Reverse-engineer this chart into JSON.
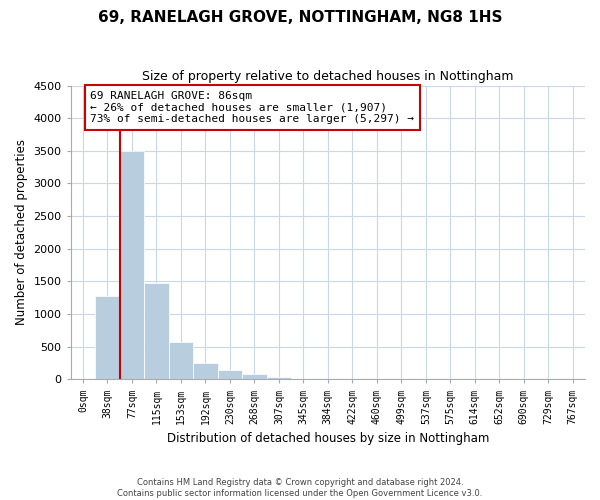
{
  "title": "69, RANELAGH GROVE, NOTTINGHAM, NG8 1HS",
  "subtitle": "Size of property relative to detached houses in Nottingham",
  "xlabel": "Distribution of detached houses by size in Nottingham",
  "ylabel": "Number of detached properties",
  "bar_labels": [
    "0sqm",
    "38sqm",
    "77sqm",
    "115sqm",
    "153sqm",
    "192sqm",
    "230sqm",
    "268sqm",
    "307sqm",
    "345sqm",
    "384sqm",
    "422sqm",
    "460sqm",
    "499sqm",
    "537sqm",
    "575sqm",
    "614sqm",
    "652sqm",
    "690sqm",
    "729sqm",
    "767sqm"
  ],
  "bar_values": [
    0,
    1280,
    3500,
    1480,
    580,
    250,
    140,
    80,
    30,
    5,
    2,
    0,
    1,
    0,
    0,
    0,
    0,
    0,
    0,
    0,
    0
  ],
  "bar_color": "#b8cedf",
  "bar_edge_color": "#b8cedf",
  "vline_x_index": 2,
  "vline_color": "#cc0000",
  "ylim": [
    0,
    4500
  ],
  "yticks": [
    0,
    500,
    1000,
    1500,
    2000,
    2500,
    3000,
    3500,
    4000,
    4500
  ],
  "annotation_text": "69 RANELAGH GROVE: 86sqm\n← 26% of detached houses are smaller (1,907)\n73% of semi-detached houses are larger (5,297) →",
  "annotation_box_color": "#ffffff",
  "annotation_box_edge": "#cc0000",
  "footer_line1": "Contains HM Land Registry data © Crown copyright and database right 2024.",
  "footer_line2": "Contains public sector information licensed under the Open Government Licence v3.0.",
  "background_color": "#ffffff",
  "grid_color": "#c8d8e8"
}
